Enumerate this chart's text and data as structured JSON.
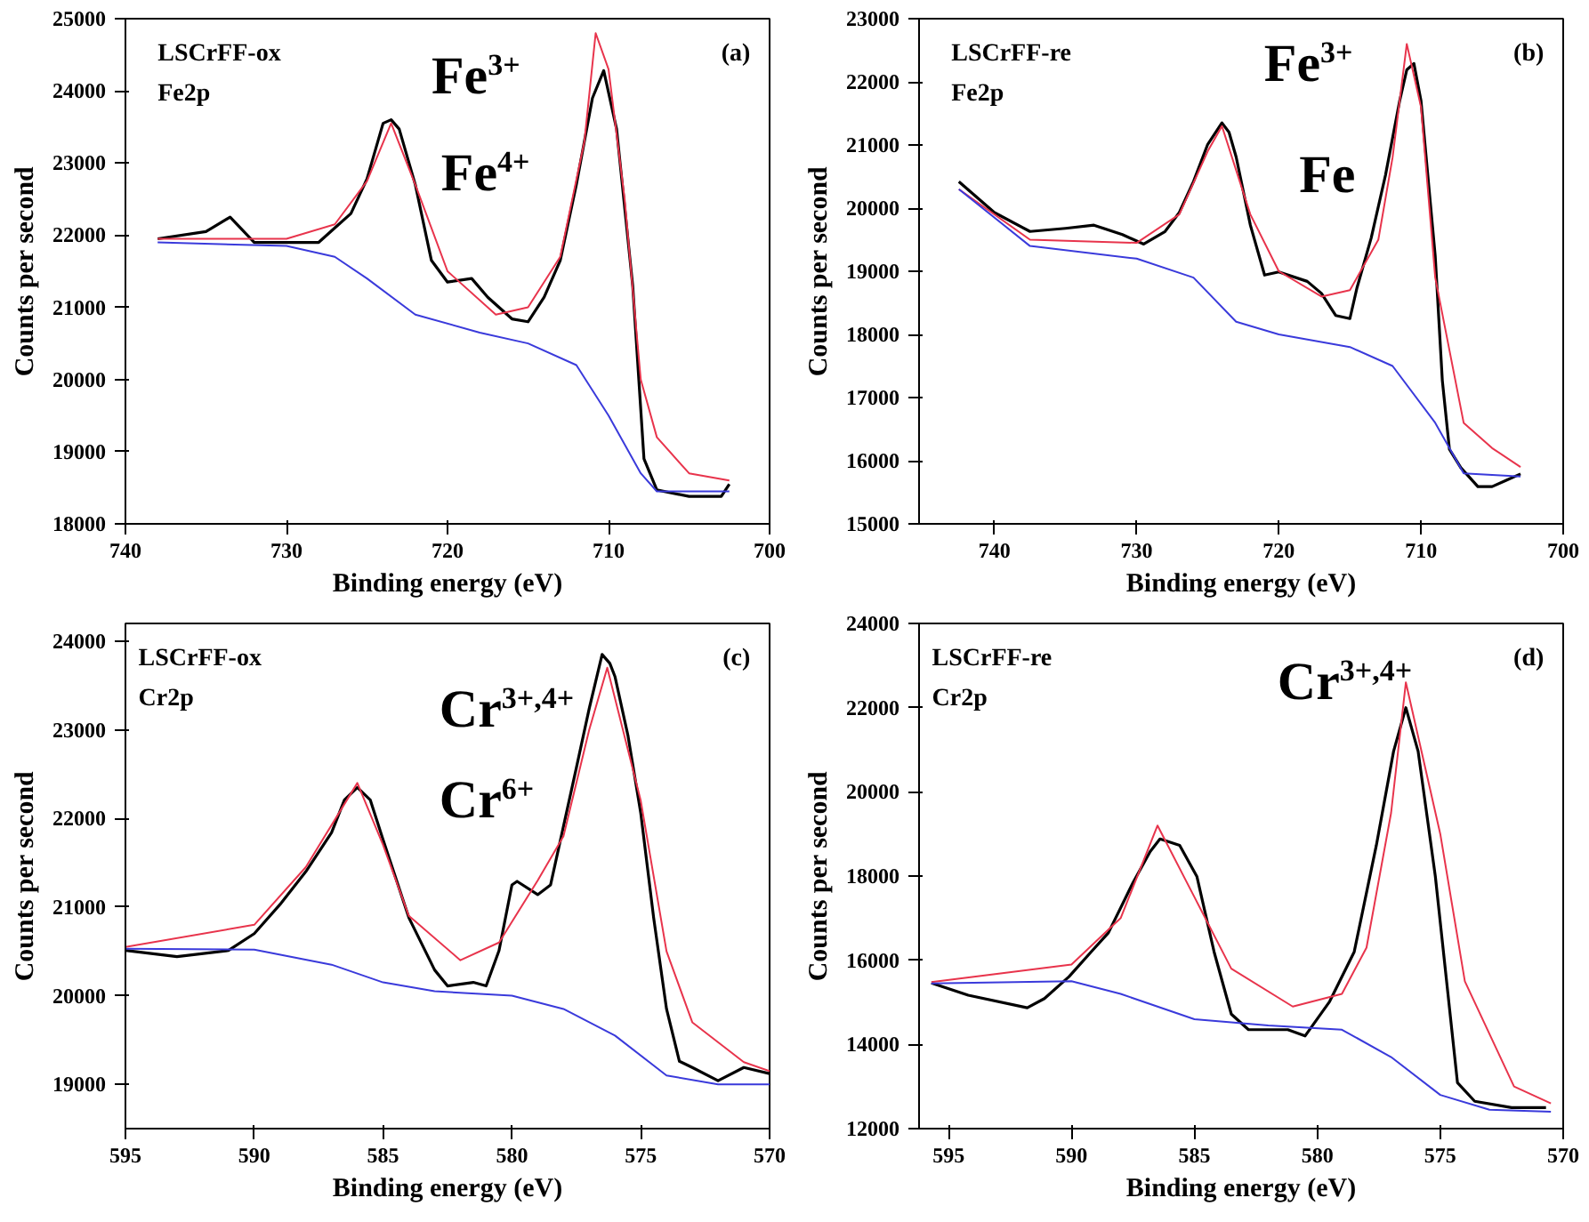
{
  "chart_data": [
    {
      "type": "line",
      "xlabel": "Binding energy (eV)",
      "ylabel": "Counts per second",
      "xlim": [
        740,
        700
      ],
      "ylim": [
        18000,
        25000
      ],
      "xticks": [
        740,
        730,
        720,
        710,
        700
      ],
      "yticks": [
        18000,
        19000,
        20000,
        21000,
        22000,
        23000,
        24000,
        25000
      ],
      "series": [
        {
          "color": "#000000",
          "x": [
            738,
            735,
            733.5,
            732,
            730,
            728,
            727,
            726,
            725,
            724,
            723.5,
            723,
            722,
            721,
            720,
            718.5,
            717.5,
            716,
            715,
            714,
            713,
            712,
            711,
            710.3,
            709.5,
            708.5,
            707.8,
            707,
            705,
            703,
            702.5
          ],
          "values": [
            21950,
            22050,
            22250,
            21900,
            21900,
            21900,
            22100,
            22300,
            22780,
            23550,
            23600,
            23470,
            22700,
            21650,
            21350,
            21400,
            21140,
            20840,
            20800,
            21140,
            21650,
            22700,
            23900,
            24280,
            23470,
            21300,
            18900,
            18470,
            18380,
            18380,
            18550
          ]
        },
        {
          "color": "#e8344c",
          "x": [
            738,
            730,
            727,
            725,
            723.5,
            722,
            720,
            717,
            715,
            713,
            711.5,
            710.8,
            710,
            709,
            708,
            707,
            705,
            702.5
          ],
          "values": [
            21950,
            21950,
            22150,
            22750,
            23550,
            22700,
            21500,
            20900,
            21000,
            21700,
            23300,
            24800,
            24300,
            22500,
            20000,
            19200,
            18700,
            18600
          ]
        },
        {
          "color": "#3a3adb",
          "x": [
            738,
            730,
            727,
            725,
            722,
            718,
            715,
            712,
            710,
            708,
            707,
            702.5
          ],
          "values": [
            21900,
            21850,
            21700,
            21400,
            20900,
            20650,
            20500,
            20200,
            19500,
            18700,
            18450,
            18450
          ]
        }
      ],
      "annotations": [
        "LSCrFF-ox",
        "Fe2p",
        "(a)",
        "Fe$^{3+}$",
        "Fe$^{4+}$"
      ]
    },
    {
      "type": "line",
      "xlabel": "Binding energy (eV)",
      "ylabel": "Counts per second",
      "xlim": [
        745.3,
        700
      ],
      "ylim": [
        15000,
        23000
      ],
      "xticks": [
        740,
        730,
        720,
        710,
        700
      ],
      "yticks": [
        15000,
        16000,
        17000,
        18000,
        19000,
        20000,
        21000,
        22000,
        23000
      ],
      "series": [
        {
          "color": "#000000",
          "x": [
            742.5,
            740,
            737.5,
            735,
            733,
            731,
            729.5,
            728,
            727,
            726,
            725,
            724,
            723.5,
            723,
            722,
            721,
            720,
            718,
            717,
            716,
            715,
            714.5,
            713.5,
            712.5,
            711.5,
            711,
            710.5,
            710,
            709,
            708.5,
            708,
            707.2,
            706,
            705,
            704,
            703
          ],
          "values": [
            20420,
            19930,
            19630,
            19680,
            19730,
            19580,
            19430,
            19630,
            19930,
            20420,
            21010,
            21350,
            21200,
            20810,
            19730,
            18940,
            18990,
            18840,
            18650,
            18300,
            18250,
            18740,
            19530,
            20520,
            21700,
            22190,
            22290,
            21700,
            19240,
            17270,
            16180,
            15890,
            15590,
            15590,
            15690,
            15790
          ]
        },
        {
          "color": "#e8344c",
          "x": [
            742.5,
            737.5,
            730,
            727,
            725,
            724,
            722,
            720,
            717,
            715,
            713,
            712,
            711,
            710,
            709,
            707,
            705,
            703
          ],
          "values": [
            20300,
            19500,
            19450,
            19900,
            20900,
            21300,
            19900,
            19000,
            18600,
            18700,
            19500,
            20800,
            22600,
            21600,
            18900,
            16600,
            16200,
            15900
          ]
        },
        {
          "color": "#3a3adb",
          "x": [
            742.5,
            737.5,
            730,
            726,
            723,
            720,
            715,
            712,
            709,
            707,
            703
          ],
          "values": [
            20300,
            19400,
            19200,
            18900,
            18200,
            18000,
            17800,
            17500,
            16600,
            15800,
            15750
          ]
        }
      ],
      "annotations": [
        "LSCrFF-re",
        "Fe2p",
        "(b)",
        "Fe$^{3+}$",
        "Fe"
      ]
    },
    {
      "type": "line",
      "xlabel": "Binding energy (eV)",
      "ylabel": "Counts per second",
      "xlim": [
        595,
        570
      ],
      "ylim": [
        18500,
        24200
      ],
      "xticks": [
        595,
        590,
        585,
        580,
        575,
        570
      ],
      "yticks": [
        19000,
        20000,
        21000,
        22000,
        23000,
        24000
      ],
      "series": [
        {
          "color": "#000000",
          "x": [
            595,
            593,
            591,
            590,
            589,
            588,
            587,
            586.5,
            586,
            585.5,
            585,
            584,
            583,
            582.5,
            581.5,
            581,
            580.5,
            580,
            579.8,
            579,
            578.5,
            578,
            577.5,
            577,
            576.5,
            576.2,
            576,
            575.5,
            575,
            574.5,
            574,
            573.5,
            573,
            572,
            571,
            570
          ],
          "values": [
            20510,
            20440,
            20510,
            20700,
            21030,
            21400,
            21840,
            22210,
            22350,
            22210,
            21760,
            20880,
            20290,
            20110,
            20150,
            20110,
            20510,
            21250,
            21290,
            21140,
            21250,
            21910,
            22570,
            23240,
            23850,
            23750,
            23600,
            22940,
            22060,
            20880,
            19850,
            19260,
            19190,
            19040,
            19190,
            19120
          ]
        },
        {
          "color": "#e8344c",
          "x": [
            595,
            590,
            588,
            586,
            585,
            584,
            582,
            580.5,
            579,
            578,
            577,
            576.3,
            575,
            574,
            573,
            571,
            570
          ],
          "values": [
            20550,
            20800,
            21450,
            22400,
            21700,
            20900,
            20400,
            20600,
            21300,
            21800,
            23000,
            23700,
            22200,
            20500,
            19700,
            19250,
            19150
          ]
        },
        {
          "color": "#3a3adb",
          "x": [
            595,
            590,
            587,
            585,
            583,
            580,
            578,
            576,
            574,
            572,
            570
          ],
          "values": [
            20530,
            20520,
            20350,
            20150,
            20050,
            20000,
            19850,
            19550,
            19100,
            19000,
            19000
          ]
        }
      ],
      "annotations": [
        "LSCrFF-ox",
        "Cr2p",
        "(c)",
        "Cr$^{3+,4+}$",
        "Cr$^{6+}$"
      ]
    },
    {
      "type": "line",
      "xlabel": "Binding energy (eV)",
      "ylabel": "Counts per second",
      "xlim": [
        596.2,
        570
      ],
      "ylim": [
        12000,
        24000
      ],
      "xticks": [
        595,
        590,
        585,
        580,
        575,
        570
      ],
      "yticks": [
        12000,
        14000,
        16000,
        18000,
        20000,
        22000,
        24000
      ],
      "series": [
        {
          "color": "#000000",
          "x": [
            595.7,
            594.2,
            591.8,
            591.1,
            590.1,
            589.2,
            588.5,
            587.5,
            586.8,
            586.4,
            585.6,
            584.9,
            584.2,
            583.5,
            582.8,
            581.2,
            580.5,
            579.5,
            578.5,
            577.6,
            576.9,
            576.4,
            575.9,
            575.2,
            574.3,
            573.6,
            572.1,
            570.7
          ],
          "values": [
            15460,
            15170,
            14870,
            15090,
            15610,
            16200,
            16650,
            17840,
            18580,
            18880,
            18730,
            17990,
            16200,
            14720,
            14350,
            14350,
            14200,
            15020,
            16200,
            18730,
            20960,
            22000,
            20960,
            17990,
            13090,
            12650,
            12500,
            12500
          ]
        },
        {
          "color": "#e8344c",
          "x": [
            595.7,
            590,
            588,
            586.5,
            585,
            583.5,
            581,
            579,
            578,
            577,
            576.4,
            575,
            574,
            572,
            570.5
          ],
          "values": [
            15480,
            15900,
            17000,
            19200,
            17500,
            15800,
            14900,
            15200,
            16300,
            19500,
            22600,
            19000,
            15500,
            13000,
            12600
          ]
        },
        {
          "color": "#3a3adb",
          "x": [
            595.7,
            590,
            588,
            585,
            582,
            579,
            577,
            575,
            573,
            570.5
          ],
          "values": [
            15450,
            15500,
            15200,
            14600,
            14450,
            14350,
            13700,
            12800,
            12450,
            12400
          ]
        }
      ],
      "annotations": [
        "LSCrFF-re",
        "Cr2p",
        "(d)",
        "Cr$^{3+,4+}$"
      ]
    }
  ]
}
